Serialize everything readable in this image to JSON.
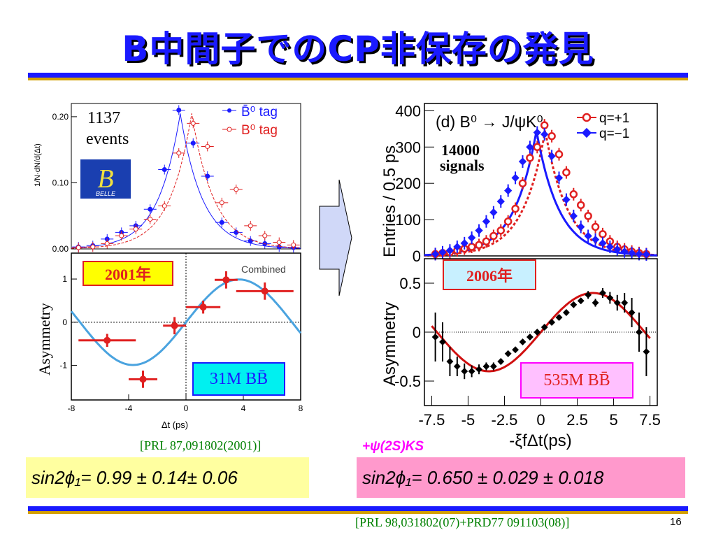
{
  "title": "B中間子でのCP非保存の発見",
  "page_number": "16",
  "left": {
    "events": "1137",
    "events_word": "events",
    "year": "2001年",
    "sample": "31M BB̄",
    "belle_logo": "BELLE",
    "ref": "[PRL 87,091802(2001)]",
    "formula": "sin2ϕ₁= 0.99 ± 0.14± 0.06",
    "colors": {
      "b0bar": "#1a1aff",
      "b0": "#e02020",
      "fit": "#4aa3df"
    }
  },
  "right": {
    "decay": "(d) B⁰ → J/ψK⁰",
    "signals_count": "14000",
    "signals_word": "signals",
    "year": "2006年",
    "sample": "535M BB̄",
    "mode": "+ψ(2S)KS",
    "ref": "[PRL 98,031802(07)+PRD77 091103(08)]",
    "formula": "sin2ϕ₁= 0.650 ± 0.029 ± 0.018"
  },
  "chart_data": [
    {
      "type": "scatter",
      "title": "",
      "ylabel": "1/N·dN/d(Δt)",
      "ylim": [
        0,
        0.22
      ],
      "yticks": [
        "0.00",
        "0.10",
        "0.20"
      ],
      "series": [
        {
          "name": "B̄⁰ tag",
          "x": [
            -7.5,
            -6.5,
            -5.5,
            -4.5,
            -3.5,
            -2.5,
            -1.5,
            -0.5,
            0.5,
            1.5,
            2.5,
            3.5,
            4.5,
            5.5,
            6.5,
            7.5
          ],
          "y": [
            0.003,
            0.005,
            0.015,
            0.025,
            0.035,
            0.06,
            0.12,
            0.21,
            0.16,
            0.11,
            0.04,
            0.025,
            0.012,
            0.008,
            0.003,
            0.002
          ]
        },
        {
          "name": "B⁰ tag",
          "x": [
            -7.5,
            -6.5,
            -5.5,
            -4.5,
            -3.5,
            -2.5,
            -1.5,
            -0.5,
            0.5,
            1.5,
            2.5,
            3.5,
            4.5,
            5.5,
            6.5,
            7.5
          ],
          "y": [
            0.002,
            0.003,
            0.008,
            0.02,
            0.03,
            0.045,
            0.065,
            0.145,
            0.19,
            0.155,
            0.07,
            0.09,
            0.035,
            0.02,
            0.01,
            0.006
          ]
        }
      ]
    },
    {
      "type": "scatter",
      "title": "Combined",
      "xlabel": "Δt (ps)",
      "ylabel": "Asymmetry",
      "xlim": [
        -8,
        8
      ],
      "ylim": [
        -1.8,
        1.6
      ],
      "xticks": [
        "-8",
        "-4",
        "0",
        "4",
        "8"
      ],
      "yticks": [
        "-1",
        "0",
        "1"
      ],
      "points": [
        {
          "x": -5.5,
          "y": -0.42,
          "xerr": 2.0,
          "yerr": 0.15
        },
        {
          "x": -3.0,
          "y": -1.32,
          "xerr": 1.0,
          "yerr": 0.2
        },
        {
          "x": -0.8,
          "y": -0.08,
          "xerr": 0.8,
          "yerr": 0.2
        },
        {
          "x": 1.2,
          "y": 0.35,
          "xerr": 1.2,
          "yerr": 0.15
        },
        {
          "x": 2.8,
          "y": 0.98,
          "xerr": 0.8,
          "yerr": 0.2
        },
        {
          "x": 5.5,
          "y": 0.72,
          "xerr": 2.0,
          "yerr": 0.2
        }
      ],
      "fit_amplitude": 0.99
    },
    {
      "type": "scatter",
      "ylabel": "Entries / 0.5 ps",
      "xlim": [
        -8,
        8
      ],
      "ylim": [
        0,
        420
      ],
      "yticks": [
        "0",
        "100",
        "200",
        "300",
        "400"
      ],
      "series": [
        {
          "name": "q=+1",
          "x": [
            -7.25,
            -6.75,
            -6.25,
            -5.75,
            -5.25,
            -4.75,
            -4.25,
            -3.75,
            -3.25,
            -2.75,
            -2.25,
            -1.75,
            -1.25,
            -0.75,
            -0.25,
            0.25,
            0.75,
            1.25,
            1.75,
            2.25,
            2.75,
            3.25,
            3.75,
            4.25,
            4.75,
            5.25,
            5.75,
            6.25,
            6.75,
            7.25
          ],
          "y": [
            5,
            8,
            10,
            15,
            20,
            25,
            30,
            40,
            55,
            70,
            95,
            130,
            200,
            270,
            300,
            360,
            330,
            280,
            230,
            170,
            140,
            110,
            80,
            60,
            40,
            25,
            18,
            12,
            8,
            5
          ]
        },
        {
          "name": "q=−1",
          "x": [
            -7.25,
            -6.75,
            -6.25,
            -5.75,
            -5.25,
            -4.75,
            -4.25,
            -3.75,
            -3.25,
            -2.75,
            -2.25,
            -1.75,
            -1.25,
            -0.75,
            -0.25,
            0.25,
            0.75,
            1.25,
            1.75,
            2.25,
            2.75,
            3.25,
            3.75,
            4.25,
            4.75,
            5.25,
            5.75,
            6.25,
            6.75,
            7.25
          ],
          "y": [
            5,
            10,
            15,
            25,
            35,
            50,
            70,
            95,
            120,
            150,
            180,
            215,
            260,
            300,
            340,
            335,
            275,
            215,
            155,
            110,
            80,
            55,
            45,
            35,
            25,
            18,
            12,
            8,
            5,
            4
          ]
        }
      ]
    },
    {
      "type": "scatter",
      "xlabel": "-ξfΔt(ps)",
      "ylabel": "Asymmetry",
      "xlim": [
        -8,
        8
      ],
      "ylim": [
        -0.75,
        0.75
      ],
      "xticks": [
        "-7.5",
        "-5",
        "-2.5",
        "0",
        "2.5",
        "5",
        "7.5"
      ],
      "yticks": [
        "-0.5",
        "0",
        "0.5"
      ],
      "points_x": [
        -7.25,
        -6.75,
        -6.25,
        -5.75,
        -5.25,
        -4.75,
        -4.25,
        -3.75,
        -3.25,
        -2.75,
        -2.25,
        -1.75,
        -1.25,
        -0.75,
        -0.25,
        0.25,
        0.75,
        1.25,
        1.75,
        2.25,
        2.75,
        3.25,
        3.75,
        4.25,
        4.75,
        5.25,
        5.75,
        6.25,
        6.75,
        7.25
      ],
      "points_y": [
        -0.05,
        -0.1,
        -0.3,
        -0.35,
        -0.4,
        -0.4,
        -0.38,
        -0.35,
        -0.35,
        -0.3,
        -0.22,
        -0.18,
        -0.1,
        -0.05,
        0.0,
        0.05,
        0.1,
        0.15,
        0.2,
        0.28,
        0.32,
        0.38,
        0.3,
        0.4,
        0.35,
        0.3,
        0.3,
        0.2,
        0.0,
        -0.2
      ],
      "points_err": [
        0.25,
        0.2,
        0.15,
        0.1,
        0.08,
        0.06,
        0.05,
        0.04,
        0.04,
        0.03,
        0.03,
        0.03,
        0.02,
        0.02,
        0.02,
        0.02,
        0.02,
        0.02,
        0.03,
        0.03,
        0.03,
        0.04,
        0.04,
        0.05,
        0.06,
        0.08,
        0.1,
        0.15,
        0.2,
        0.25
      ],
      "fit_amplitude": 0.65
    }
  ]
}
